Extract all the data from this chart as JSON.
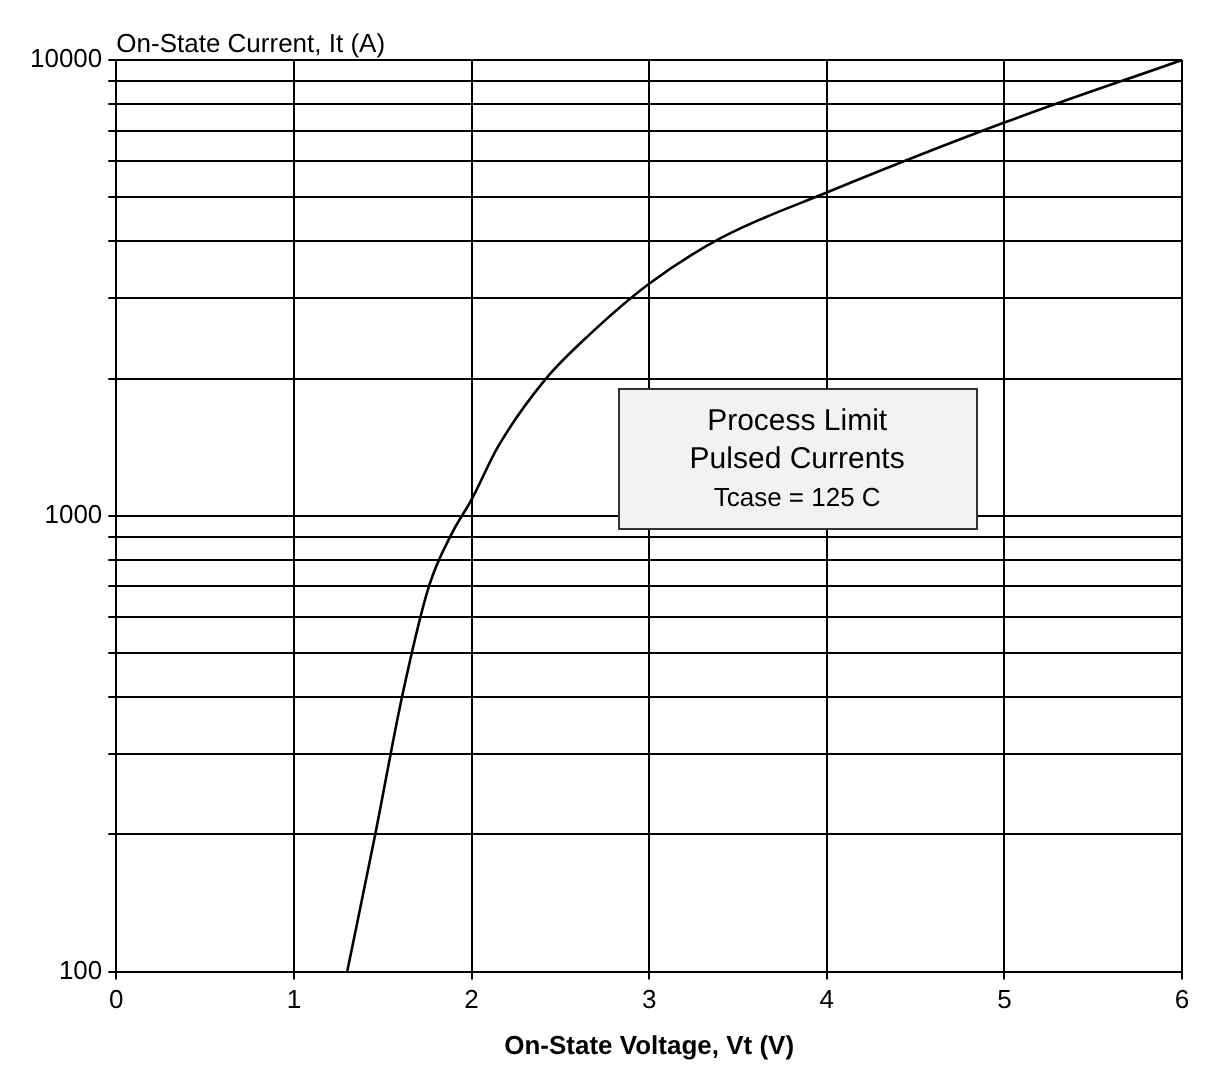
{
  "chart_data": {
    "type": "line",
    "xlabel": "On-State Voltage, Vt (V)",
    "ylabel": "On-State Current, It (A)",
    "annotations": [
      "Process Limit",
      "Pulsed Currents",
      "Tcase = 125 C"
    ],
    "series": [
      {
        "color": "#000000",
        "x": [
          1.3,
          1.46,
          1.61,
          1.76,
          1.89,
          2.0,
          2.15,
          2.41,
          2.67,
          3.0,
          3.41,
          4.0,
          5.0,
          6.0
        ],
        "values": [
          100,
          202,
          403,
          700,
          916,
          1085,
          1420,
          1980,
          2510,
          3230,
          4080,
          5120,
          7290,
          10000
        ]
      }
    ],
    "xlim": [
      0,
      6
    ],
    "xticks": [
      0,
      1,
      2,
      3,
      4,
      5,
      6
    ],
    "ylim": [
      100,
      10000
    ],
    "yticks": [
      100,
      {
        "value": 200,
        "label": null
      },
      {
        "value": 300,
        "label": null
      },
      {
        "value": 400,
        "label": null
      },
      {
        "value": 500,
        "label": null
      },
      {
        "value": 600,
        "label": null
      },
      {
        "value": 700,
        "label": null
      },
      {
        "value": 800,
        "label": null
      },
      {
        "value": 900,
        "label": null
      },
      1000,
      {
        "value": 2000,
        "label": null
      },
      {
        "value": 3000,
        "label": null
      },
      {
        "value": 4000,
        "label": null
      },
      {
        "value": 5000,
        "label": null
      },
      {
        "value": 6000,
        "label": null
      },
      {
        "value": 7000,
        "label": null
      },
      {
        "value": 8000,
        "label": null
      },
      {
        "value": 9000,
        "label": null
      },
      10000
    ],
    "log": true,
    "grid": true,
    "legend": false,
    "marker": "none",
    "line_style": "solid"
  }
}
